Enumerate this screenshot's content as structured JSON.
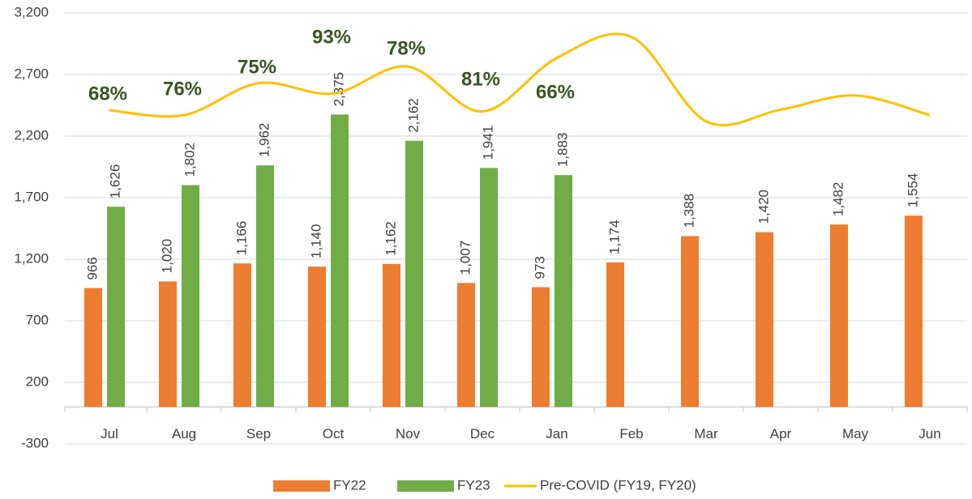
{
  "chart_data": {
    "type": "bar",
    "categories": [
      "Jul",
      "Aug",
      "Sep",
      "Oct",
      "Nov",
      "Dec",
      "Jan",
      "Feb",
      "Mar",
      "Apr",
      "May",
      "Jun"
    ],
    "series": [
      {
        "name": "FY22",
        "color": "#ED7D31",
        "type": "bar",
        "values": [
          966,
          1020,
          1166,
          1140,
          1162,
          1007,
          973,
          1174,
          1388,
          1420,
          1482,
          1554
        ],
        "value_labels": [
          "966",
          "1,020",
          "1,166",
          "1,140",
          "1,162",
          "1,007",
          "973",
          "1,174",
          "1,388",
          "1,420",
          "1,482",
          "1,554"
        ]
      },
      {
        "name": "FY23",
        "color": "#70AD47",
        "type": "bar",
        "values": [
          1626,
          1802,
          1962,
          2375,
          2162,
          1941,
          1883,
          null,
          null,
          null,
          null,
          null
        ],
        "value_labels": [
          "1,626",
          "1,802",
          "1,962",
          "2,375",
          "2,162",
          "1,941",
          "1,883",
          null,
          null,
          null,
          null,
          null
        ]
      },
      {
        "name": "Pre-COVID (FY19, FY20)",
        "color": "#FFC000",
        "type": "line",
        "values": [
          2410,
          2370,
          2630,
          2545,
          2765,
          2400,
          2835,
          3005,
          2320,
          2415,
          2530,
          2370
        ]
      }
    ],
    "annotations": [
      "68%",
      "76%",
      "75%",
      "93%",
      "78%",
      "81%",
      "66%"
    ],
    "annotation_color": "#375623",
    "ylim": [
      -300,
      3200
    ],
    "yticks": [
      -300,
      200,
      700,
      {
        "value": 1200,
        "label": "1,200"
      },
      {
        "value": 1700,
        "label": "1,700"
      },
      {
        "value": 2200,
        "label": "2,200"
      },
      {
        "value": 2700,
        "label": "2,700"
      },
      {
        "value": 3200,
        "label": "3,200"
      }
    ],
    "grid": true,
    "legend": "bottom"
  }
}
